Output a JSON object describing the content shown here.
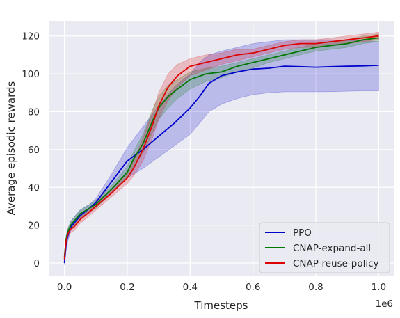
{
  "chart_data": {
    "type": "line",
    "title": "",
    "xlabel": "Timesteps",
    "ylabel": "Average episodic rewards",
    "x_offset_label": "1e6",
    "xlim": [
      -0.05,
      1.05
    ],
    "ylim": [
      -7,
      128
    ],
    "x_ticks": [
      0.0,
      0.2,
      0.4,
      0.6,
      0.8,
      1.0
    ],
    "x_tick_labels": [
      "0.0",
      "0.2",
      "0.4",
      "0.6",
      "0.8",
      "1.0"
    ],
    "y_ticks": [
      0,
      20,
      40,
      60,
      80,
      100,
      120
    ],
    "y_tick_labels": [
      "0",
      "20",
      "40",
      "60",
      "80",
      "100",
      "120"
    ],
    "grid": true,
    "background": "#eaeaf2",
    "legend_position": "lower-right",
    "series": [
      {
        "name": "PPO",
        "color": "#0000cc",
        "x": [
          0.0,
          0.005,
          0.01,
          0.02,
          0.03,
          0.05,
          0.08,
          0.1,
          0.15,
          0.2,
          0.25,
          0.3,
          0.35,
          0.4,
          0.43,
          0.46,
          0.5,
          0.55,
          0.6,
          0.65,
          0.7,
          0.75,
          0.8,
          0.85,
          0.9,
          0.95,
          1.0
        ],
        "y": [
          0,
          9,
          14,
          19,
          21,
          25,
          29,
          32,
          43,
          54,
          60,
          67,
          74,
          82,
          88,
          95,
          99,
          101,
          102.5,
          103,
          104,
          103.8,
          103.5,
          103.8,
          104,
          104.2,
          104.5
        ],
        "lower": [
          -1,
          6,
          11,
          17,
          19,
          23,
          27,
          30,
          38,
          45,
          50,
          56,
          62,
          68,
          74,
          80,
          84,
          87,
          89,
          90,
          90.5,
          90.5,
          90.5,
          90.6,
          90.8,
          91,
          91
        ],
        "upper": [
          1,
          11,
          17,
          22,
          24,
          28,
          31,
          34,
          47,
          61,
          72,
          83,
          93,
          100,
          106,
          110,
          112,
          114,
          116,
          117,
          118,
          118,
          118,
          118,
          117.5,
          117.5,
          117
        ]
      },
      {
        "name": "CNAP-expand-all",
        "color": "#007700",
        "x": [
          0.0,
          0.005,
          0.01,
          0.02,
          0.03,
          0.05,
          0.08,
          0.1,
          0.15,
          0.2,
          0.22,
          0.25,
          0.28,
          0.3,
          0.33,
          0.36,
          0.4,
          0.45,
          0.5,
          0.55,
          0.6,
          0.65,
          0.7,
          0.75,
          0.8,
          0.85,
          0.9,
          0.95,
          1.0
        ],
        "y": [
          3,
          12,
          16,
          20,
          22,
          26,
          29,
          31,
          39,
          48,
          55,
          63,
          75,
          82,
          88,
          92,
          97,
          100,
          101,
          104,
          106,
          108,
          110,
          112,
          114,
          115,
          116,
          118,
          119
        ],
        "lower": [
          1,
          10,
          14,
          18,
          20,
          24,
          27,
          29,
          37,
          45,
          51,
          58,
          69,
          76,
          82,
          87,
          92,
          96,
          98,
          101,
          103,
          106,
          108,
          110,
          112,
          113,
          114,
          116,
          117
        ],
        "upper": [
          5,
          14,
          18,
          22,
          24,
          28,
          31,
          33,
          41,
          51,
          59,
          68,
          81,
          88,
          94,
          97,
          101,
          103,
          104,
          106,
          108,
          110,
          112,
          114,
          116,
          117,
          118,
          120,
          121
        ]
      },
      {
        "name": "CNAP-reuse-policy",
        "color": "#dd0000",
        "x": [
          0.0,
          0.005,
          0.01,
          0.02,
          0.03,
          0.05,
          0.08,
          0.1,
          0.15,
          0.2,
          0.22,
          0.25,
          0.28,
          0.3,
          0.33,
          0.36,
          0.4,
          0.45,
          0.5,
          0.55,
          0.6,
          0.65,
          0.7,
          0.75,
          0.8,
          0.85,
          0.9,
          0.95,
          1.0
        ],
        "y": [
          2,
          11,
          15,
          18,
          19,
          23,
          27,
          30,
          37,
          45,
          50,
          60,
          73,
          83,
          93,
          99,
          104,
          106,
          108,
          110,
          111,
          113,
          115,
          116,
          116,
          117,
          118,
          119,
          120
        ],
        "lower": [
          0,
          9,
          13,
          16,
          17,
          21,
          25,
          28,
          35,
          42,
          46,
          54,
          66,
          76,
          86,
          93,
          99,
          102,
          105,
          107,
          109,
          111,
          113,
          114,
          114,
          115,
          116,
          117,
          118
        ],
        "upper": [
          4,
          13,
          17,
          20,
          21,
          25,
          29,
          32,
          39,
          48,
          54,
          66,
          80,
          90,
          100,
          105,
          108,
          110,
          111,
          113,
          113,
          115,
          117,
          118,
          118,
          119,
          120,
          121,
          122
        ]
      }
    ]
  }
}
